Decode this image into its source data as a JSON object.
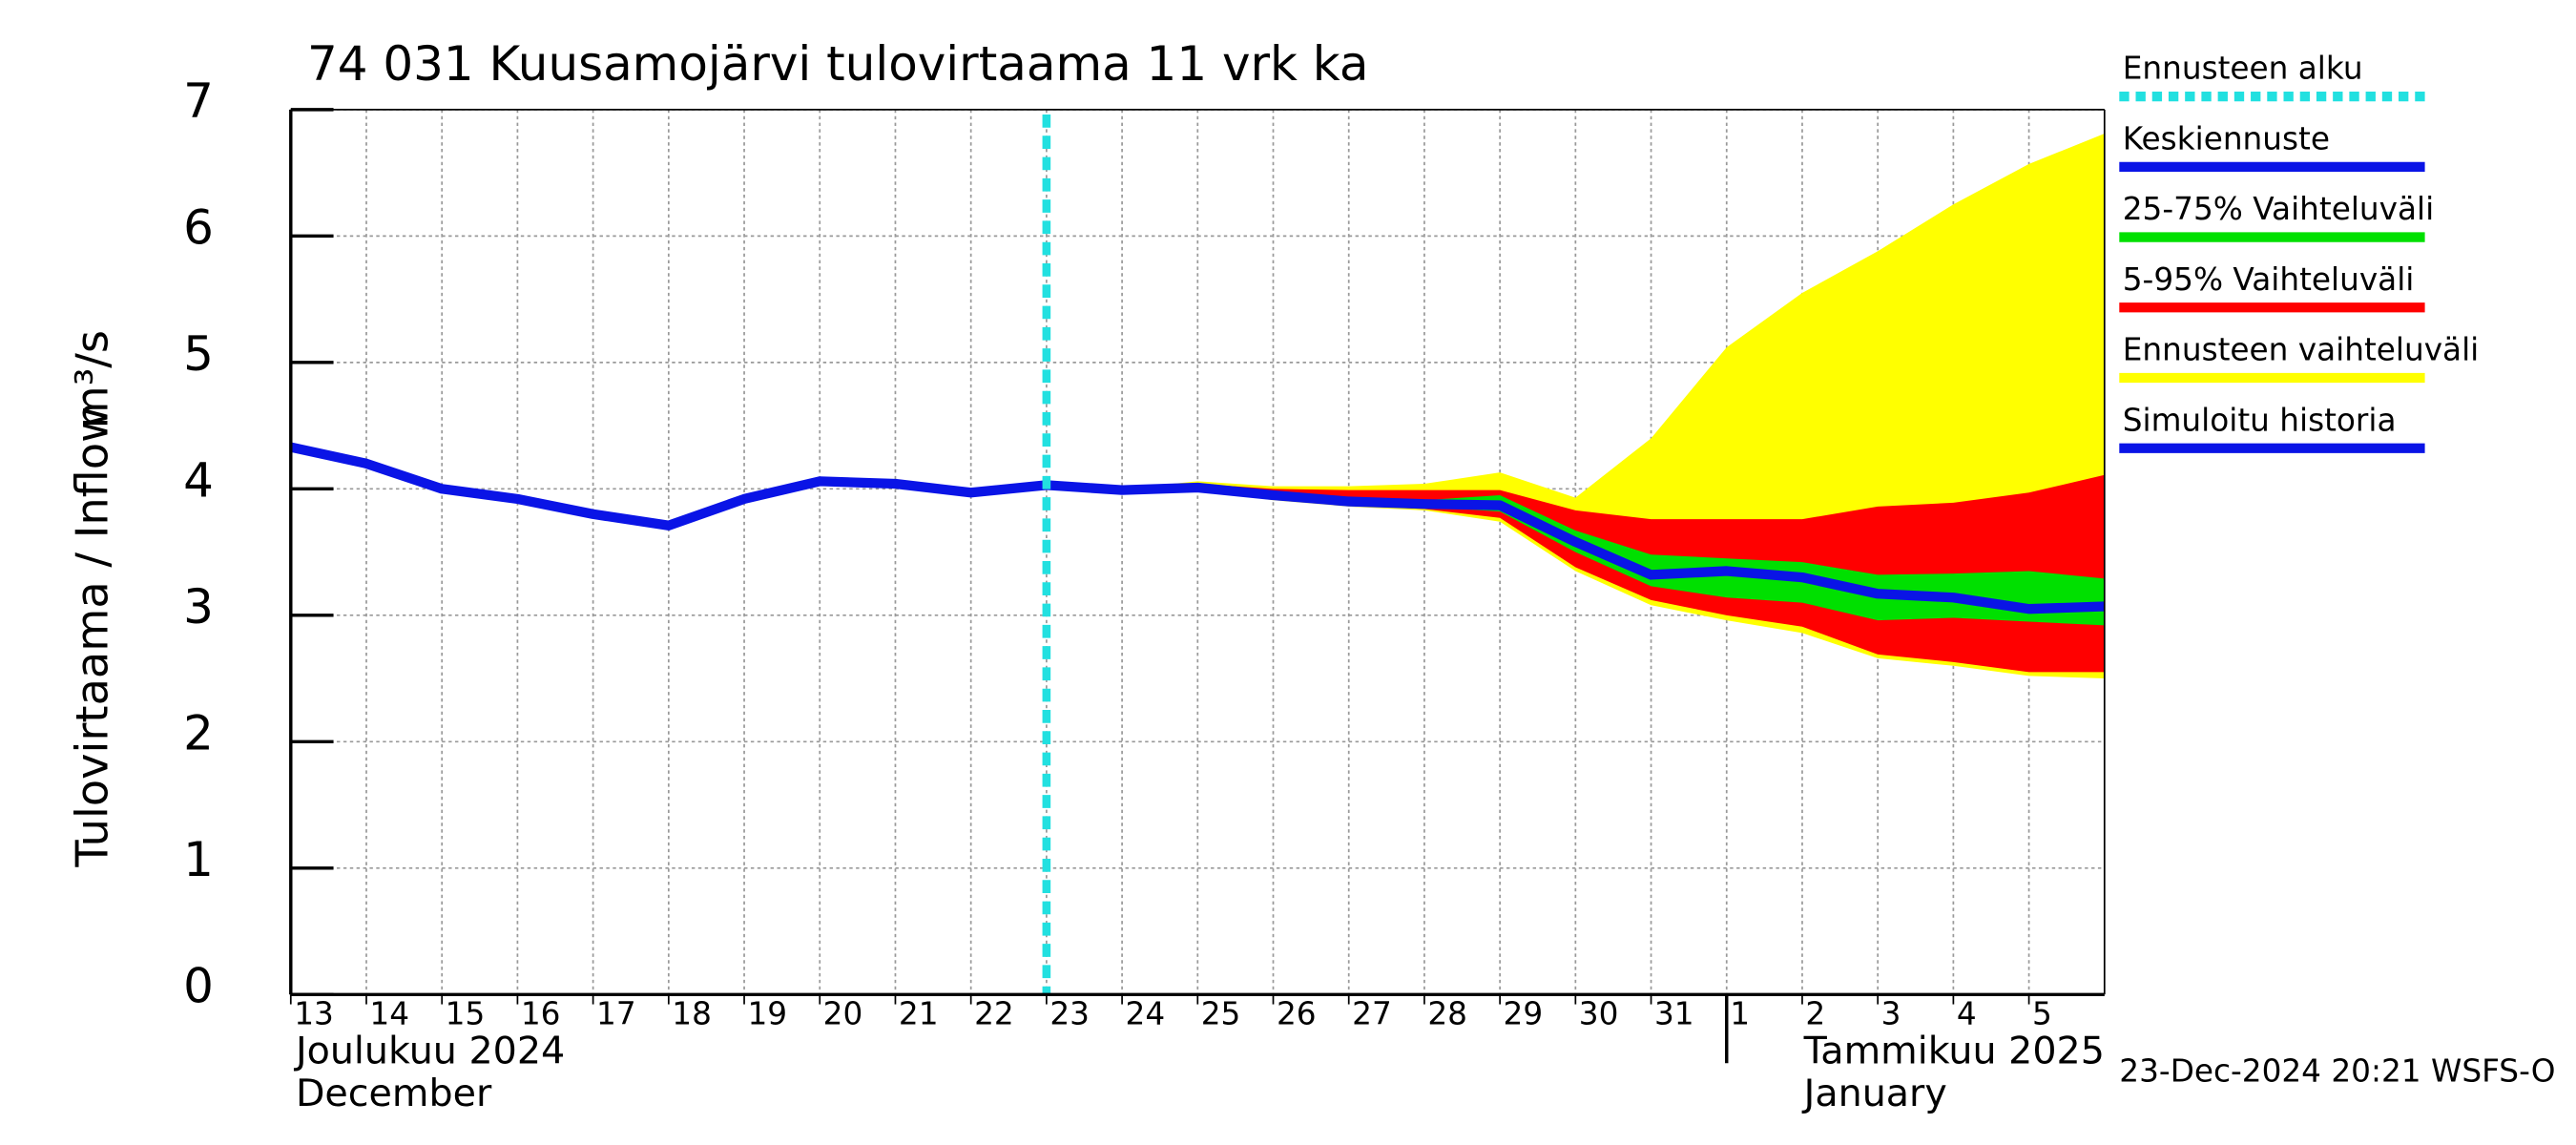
{
  "chart_data": {
    "type": "line",
    "title": "74 031 Kuusamojärvi tulovirtaama 11 vrk ka",
    "y_label": "Tulovirtaama / Inflow",
    "y_unit": "m³/s",
    "month_labels": [
      "Joulukuu  2024",
      "December",
      "Tammikuu  2025",
      "January"
    ],
    "footer": "23-Dec-2024 20:21 WSFS-O",
    "xlim": [
      "2024-12-13",
      "2025-01-06"
    ],
    "xticks": [
      {
        "value": "2024-12-13",
        "label": "13"
      },
      {
        "value": "2024-12-14",
        "label": "14"
      },
      {
        "value": "2024-12-15",
        "label": "15"
      },
      {
        "value": "2024-12-16",
        "label": "16"
      },
      {
        "value": "2024-12-17",
        "label": "17"
      },
      {
        "value": "2024-12-18",
        "label": "18"
      },
      {
        "value": "2024-12-19",
        "label": "19"
      },
      {
        "value": "2024-12-20",
        "label": "20"
      },
      {
        "value": "2024-12-21",
        "label": "21"
      },
      {
        "value": "2024-12-22",
        "label": "22"
      },
      {
        "value": "2024-12-23",
        "label": "23"
      },
      {
        "value": "2024-12-24",
        "label": "24"
      },
      {
        "value": "2024-12-25",
        "label": "25"
      },
      {
        "value": "2024-12-26",
        "label": "26"
      },
      {
        "value": "2024-12-27",
        "label": "27"
      },
      {
        "value": "2024-12-28",
        "label": "28"
      },
      {
        "value": "2024-12-29",
        "label": "29"
      },
      {
        "value": "2024-12-30",
        "label": "30"
      },
      {
        "value": "2024-12-31",
        "label": "31"
      },
      {
        "value": "2025-01-01",
        "label": "1"
      },
      {
        "value": "2025-01-02",
        "label": "2"
      },
      {
        "value": "2025-01-03",
        "label": "3"
      },
      {
        "value": "2025-01-04",
        "label": "4"
      },
      {
        "value": "2025-01-05",
        "label": "5"
      }
    ],
    "month_boundary": "2025-01-01",
    "ylim": [
      0,
      7
    ],
    "yticks": [
      0,
      1,
      2,
      3,
      4,
      5,
      6,
      7
    ],
    "grid": true,
    "forecast_start": {
      "name": "Ennusteen alku",
      "x": "2024-12-23",
      "color": "#22e0e0"
    },
    "series": [
      {
        "name": "Keskiennuste",
        "color": "#0a14e6",
        "kind": "line",
        "x": [
          "2024-12-23",
          "2024-12-24",
          "2024-12-25",
          "2024-12-26",
          "2024-12-27",
          "2024-12-28",
          "2024-12-29",
          "2024-12-30",
          "2024-12-31",
          "2025-01-01",
          "2025-01-02",
          "2025-01-03",
          "2025-01-04",
          "2025-01-05",
          "2025-01-06"
        ],
        "values": [
          4.03,
          3.99,
          4.01,
          3.95,
          3.9,
          3.88,
          3.87,
          3.58,
          3.32,
          3.35,
          3.3,
          3.17,
          3.14,
          3.05,
          3.07
        ]
      },
      {
        "name": "25-75% Vaihteluväli",
        "color": "#00e000",
        "kind": "band",
        "x": [
          "2024-12-23",
          "2024-12-24",
          "2024-12-25",
          "2024-12-26",
          "2024-12-27",
          "2024-12-28",
          "2024-12-29",
          "2024-12-30",
          "2024-12-31",
          "2025-01-01",
          "2025-01-02",
          "2025-01-03",
          "2025-01-04",
          "2025-01-05",
          "2025-01-06"
        ],
        "upper": [
          4.03,
          4.0,
          4.02,
          3.97,
          3.93,
          3.91,
          3.95,
          3.67,
          3.48,
          3.45,
          3.42,
          3.32,
          3.33,
          3.35,
          3.29
        ],
        "lower": [
          4.03,
          3.98,
          4.0,
          3.93,
          3.88,
          3.86,
          3.82,
          3.5,
          3.23,
          3.14,
          3.1,
          2.96,
          2.98,
          2.95,
          2.92
        ]
      },
      {
        "name": "5-95% Vaihteluväli",
        "color": "#ff0000",
        "kind": "band",
        "x": [
          "2024-12-23",
          "2024-12-24",
          "2024-12-25",
          "2024-12-26",
          "2024-12-27",
          "2024-12-28",
          "2024-12-29",
          "2024-12-30",
          "2024-12-31",
          "2025-01-01",
          "2025-01-02",
          "2025-01-03",
          "2025-01-04",
          "2025-01-05",
          "2025-01-06"
        ],
        "upper": [
          4.03,
          4.0,
          4.04,
          4.0,
          3.99,
          3.99,
          3.99,
          3.83,
          3.76,
          3.76,
          3.76,
          3.86,
          3.89,
          3.97,
          4.11
        ],
        "lower": [
          4.03,
          3.98,
          4.0,
          3.92,
          3.87,
          3.84,
          3.77,
          3.38,
          3.12,
          3.0,
          2.91,
          2.69,
          2.63,
          2.55,
          2.55
        ]
      },
      {
        "name": "Ennusteen vaihteluväli",
        "color": "#ffff00",
        "kind": "band",
        "x": [
          "2024-12-23",
          "2024-12-24",
          "2024-12-25",
          "2024-12-26",
          "2024-12-27",
          "2024-12-28",
          "2024-12-29",
          "2024-12-30",
          "2024-12-31",
          "2025-01-01",
          "2025-01-02",
          "2025-01-03",
          "2025-01-04",
          "2025-01-05",
          "2025-01-06"
        ],
        "upper": [
          4.03,
          4.0,
          4.06,
          4.02,
          4.02,
          4.04,
          4.13,
          3.93,
          4.4,
          5.12,
          5.55,
          5.88,
          6.25,
          6.57,
          6.81
        ],
        "lower": [
          4.03,
          3.98,
          3.99,
          3.91,
          3.86,
          3.83,
          3.74,
          3.35,
          3.08,
          2.96,
          2.86,
          2.66,
          2.6,
          2.52,
          2.5
        ]
      },
      {
        "name": "Simuloitu historia",
        "color": "#0a14e6",
        "kind": "line",
        "x": [
          "2024-12-13",
          "2024-12-14",
          "2024-12-15",
          "2024-12-16",
          "2024-12-17",
          "2024-12-18",
          "2024-12-19",
          "2024-12-20",
          "2024-12-21",
          "2024-12-22",
          "2024-12-23"
        ],
        "values": [
          4.33,
          4.2,
          4.0,
          3.92,
          3.8,
          3.71,
          3.92,
          4.06,
          4.04,
          3.97,
          4.03
        ]
      }
    ]
  }
}
